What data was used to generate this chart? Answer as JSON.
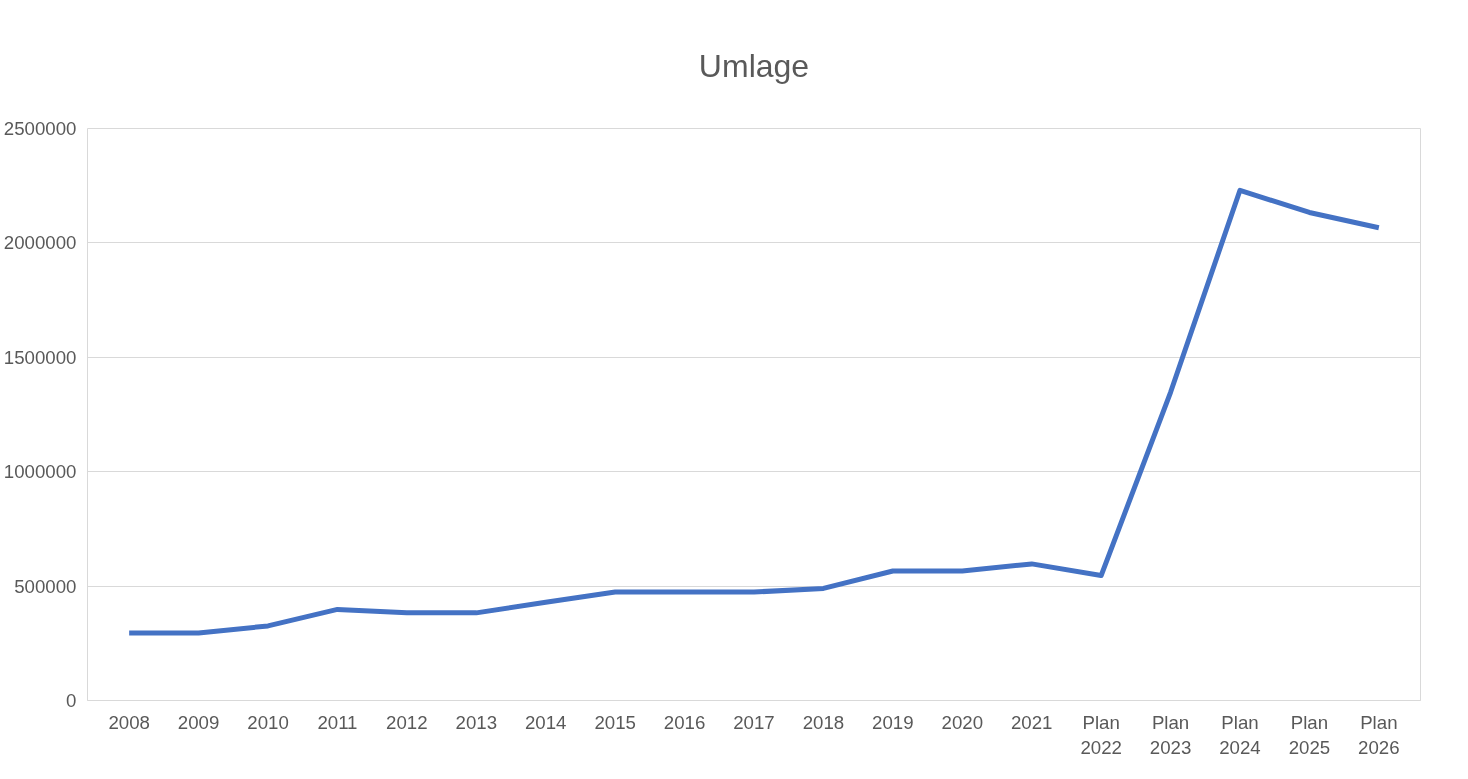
{
  "chart_data": {
    "type": "line",
    "title": "Umlage",
    "categories": [
      "2008",
      "2009",
      "2010",
      "2011",
      "2012",
      "2013",
      "2014",
      "2015",
      "2016",
      "2017",
      "2018",
      "2019",
      "2020",
      "2021",
      "Plan\n2022",
      "Plan\n2023",
      "Plan\n2024",
      "Plan\n2025",
      "Plan\n2026"
    ],
    "series": [
      {
        "color": "#4472c4",
        "values": [
          295000,
          295000,
          326000,
          398000,
          383000,
          383000,
          429000,
          474000,
          474000,
          474000,
          490000,
          566000,
          566000,
          597000,
          546000,
          1347000,
          2230000,
          2133000,
          2066000
        ]
      }
    ],
    "ylim": [
      0,
      2500000
    ],
    "yticks": [
      0,
      500000,
      1000000,
      1500000,
      2000000,
      2500000
    ],
    "grid": "y",
    "marker": "none",
    "line_style": "solid"
  }
}
